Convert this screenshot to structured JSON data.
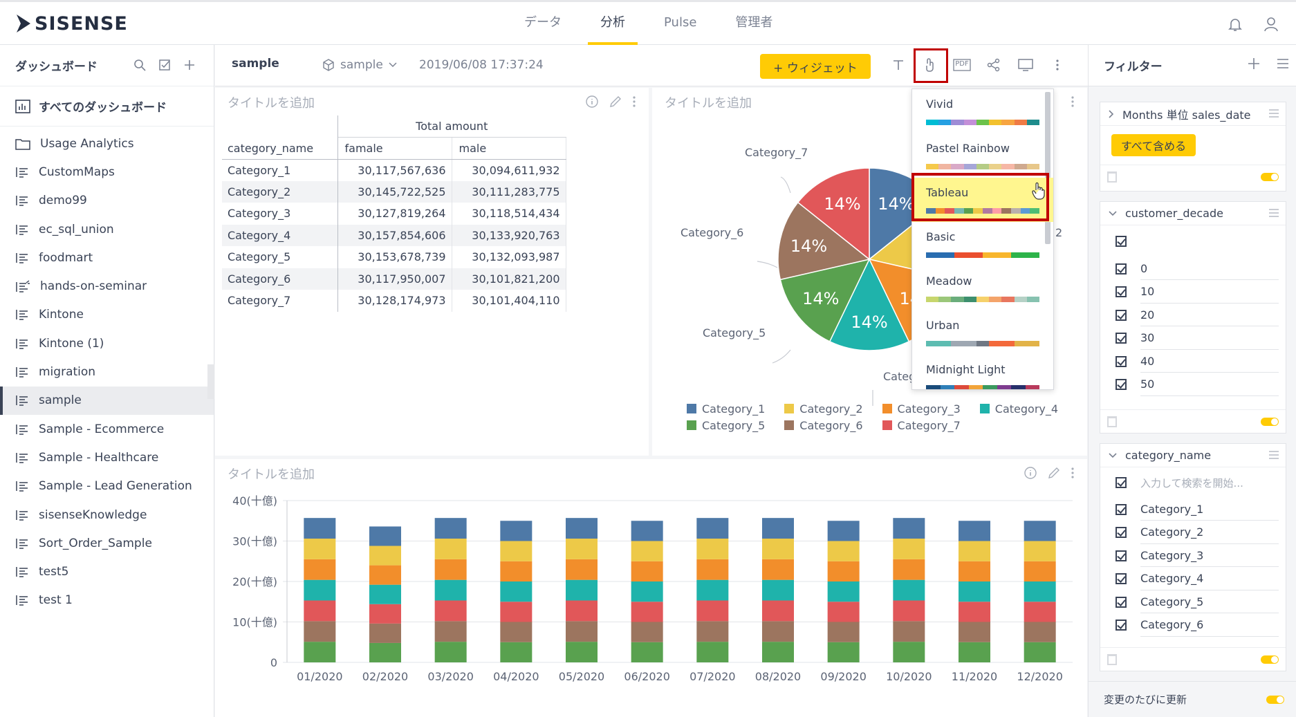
{
  "topbar": {
    "logo_text": "SISENSE",
    "tabs": [
      {
        "label": "データ"
      },
      {
        "label": "分析"
      },
      {
        "label": "Pulse"
      },
      {
        "label": "管理者"
      }
    ]
  },
  "left_panel": {
    "title": "ダッシュボード",
    "all_dashboards": "すべてのダッシュボード",
    "items": [
      {
        "label": "Usage Analytics"
      },
      {
        "label": "CustomMaps"
      },
      {
        "label": "demo99"
      },
      {
        "label": "ec_sql_union"
      },
      {
        "label": "foodmart"
      },
      {
        "label": "hands-on-seminar"
      },
      {
        "label": "Kintone"
      },
      {
        "label": "Kintone (1)"
      },
      {
        "label": "migration"
      },
      {
        "label": "sample"
      },
      {
        "label": "Sample - Ecommerce"
      },
      {
        "label": "Sample - Healthcare"
      },
      {
        "label": "Sample - Lead Generation"
      },
      {
        "label": "sisenseKnowledge"
      },
      {
        "label": "Sort_Order_Sample"
      },
      {
        "label": "test5"
      },
      {
        "label": "test 1"
      }
    ]
  },
  "dashboard_header": {
    "title": "sample",
    "cube": "sample",
    "date": "2019/06/08 17:37:24",
    "widget_button": "+ ウィジェット",
    "pdf_label": "PDF"
  },
  "widgets": {
    "placeholder_title": "タイトルを追加"
  },
  "pivot": {
    "group_header": "Total amount",
    "col_name": "category_name",
    "col_female": "famale",
    "col_male": "male",
    "rows": [
      {
        "name": "Category_1",
        "famale": "30,117,567,636",
        "male": "30,094,611,932"
      },
      {
        "name": "Category_2",
        "famale": "30,145,722,525",
        "male": "30,111,283,775"
      },
      {
        "name": "Category_3",
        "famale": "30,127,819,264",
        "male": "30,118,514,434"
      },
      {
        "name": "Category_4",
        "famale": "30,157,854,606",
        "male": "30,133,920,763"
      },
      {
        "name": "Category_5",
        "famale": "30,153,678,739",
        "male": "30,132,093,987"
      },
      {
        "name": "Category_6",
        "famale": "30,117,950,007",
        "male": "30,101,821,200"
      },
      {
        "name": "Category_7",
        "famale": "30,128,174,973",
        "male": "30,101,404,110"
      }
    ]
  },
  "colors": {
    "accent": "#ffcb05",
    "highlight_border": "#c00000",
    "cat1": "#4e79a7",
    "cat2": "#edc948",
    "cat3": "#f28e2b",
    "cat4": "#1fb3ab",
    "cat5": "#59a14f",
    "cat6": "#9c755f",
    "cat7": "#e15759"
  },
  "pie": {
    "slice_label": "14%",
    "outside_labels": [
      "Category_7",
      "Category_6",
      "Category_5",
      "Categ",
      "2"
    ],
    "legend": [
      "Category_1",
      "Category_2",
      "Category_3",
      "Category_4",
      "Category_5",
      "Category_6",
      "Category_7"
    ]
  },
  "palette_menu": {
    "items": [
      {
        "label": "Vivid",
        "colors": [
          "#00bcd4",
          "#26a0e2",
          "#9e8cd6",
          "#c38fd8",
          "#6cc24a",
          "#f2c12e",
          "#f7a541",
          "#ef7b45",
          "#1e8c8c"
        ]
      },
      {
        "label": "Pastel Rainbow",
        "colors": [
          "#f5c94b",
          "#f0b5a1",
          "#d9a9c7",
          "#a6a6d8",
          "#b5cc86",
          "#ead18b",
          "#f6b7a6",
          "#cfa98f",
          "#e7c78a"
        ]
      },
      {
        "label": "Tableau",
        "colors": [
          "#4e79a7",
          "#f28e2b",
          "#e15759",
          "#76b7b2",
          "#59a14f",
          "#edc948",
          "#b07aa1",
          "#ff9da7",
          "#9c755f",
          "#bab0ac",
          "#5b9bd5",
          "#4dbd74"
        ]
      },
      {
        "label": "Basic",
        "colors": [
          "#2a6db0",
          "#2a6db0",
          "#ea4f2f",
          "#ea4f2f",
          "#f8b62d",
          "#f8b62d",
          "#2db34a",
          "#2db34a"
        ]
      },
      {
        "label": "Meadow",
        "colors": [
          "#c7d66d",
          "#9bc77a",
          "#6aad7b",
          "#3d8f6e",
          "#f6d16b",
          "#f4a46a",
          "#e8775f",
          "#b6d1c6",
          "#87c2b0"
        ]
      },
      {
        "label": "Urban",
        "colors": [
          "#5dbcb1",
          "#5dbcb1",
          "#9ea7b2",
          "#9ea7b2",
          "#6f7783",
          "#f3693b",
          "#f3693b",
          "#e2b348",
          "#e2b348"
        ]
      },
      {
        "label": "Midnight Light",
        "colors": [
          "#1a4b7a",
          "#2f7fb8",
          "#dd4a3b",
          "#f2a43a",
          "#3c9a5f",
          "#7e3c8f",
          "#27306b",
          "#b83a5c"
        ]
      }
    ]
  },
  "bar_chart": {
    "y_tick_labels": [
      "40(十億)",
      "30(十億)",
      "20(十億)",
      "10(十億)",
      "0"
    ]
  },
  "chart_data": {
    "type": "bar",
    "stacked": true,
    "categories": [
      "01/2020",
      "02/2020",
      "03/2020",
      "04/2020",
      "05/2020",
      "06/2020",
      "07/2020",
      "08/2020",
      "09/2020",
      "10/2020",
      "11/2020",
      "12/2020"
    ],
    "series": [
      {
        "name": "Category_5",
        "values": [
          5.1,
          4.8,
          5.1,
          5.0,
          5.1,
          5.0,
          5.1,
          5.1,
          5.0,
          5.1,
          5.0,
          5.0
        ]
      },
      {
        "name": "Category_6",
        "values": [
          5.1,
          4.8,
          5.1,
          5.0,
          5.1,
          5.0,
          5.1,
          5.1,
          5.0,
          5.1,
          5.0,
          5.0
        ]
      },
      {
        "name": "Category_7",
        "values": [
          5.1,
          4.8,
          5.1,
          5.0,
          5.1,
          5.0,
          5.1,
          5.1,
          5.0,
          5.1,
          5.0,
          5.0
        ]
      },
      {
        "name": "Category_4",
        "values": [
          5.1,
          4.8,
          5.1,
          5.0,
          5.1,
          5.0,
          5.1,
          5.1,
          5.0,
          5.1,
          5.0,
          5.0
        ]
      },
      {
        "name": "Category_3",
        "values": [
          5.1,
          4.8,
          5.1,
          5.0,
          5.1,
          5.0,
          5.1,
          5.1,
          5.0,
          5.1,
          5.0,
          5.0
        ]
      },
      {
        "name": "Category_2",
        "values": [
          5.1,
          4.8,
          5.1,
          5.0,
          5.1,
          5.0,
          5.1,
          5.1,
          5.0,
          5.1,
          5.0,
          5.0
        ]
      },
      {
        "name": "Category_1",
        "values": [
          5.1,
          4.8,
          5.1,
          5.0,
          5.1,
          5.0,
          5.1,
          5.1,
          5.0,
          5.1,
          5.0,
          5.0
        ]
      }
    ],
    "ylim": [
      0,
      40
    ]
  },
  "filters": {
    "title": "フィルター",
    "months": {
      "label": "Months 単位 sales_date",
      "button": "すべて含める"
    },
    "decade": {
      "label": "customer_decade",
      "values": [
        "0",
        "10",
        "20",
        "30",
        "40",
        "50"
      ]
    },
    "category": {
      "label": "category_name",
      "search_placeholder": "入力して検索を開始...",
      "values": [
        "Category_1",
        "Category_2",
        "Category_3",
        "Category_4",
        "Category_5",
        "Category_6"
      ]
    },
    "update_label": "変更のたびに更新"
  }
}
